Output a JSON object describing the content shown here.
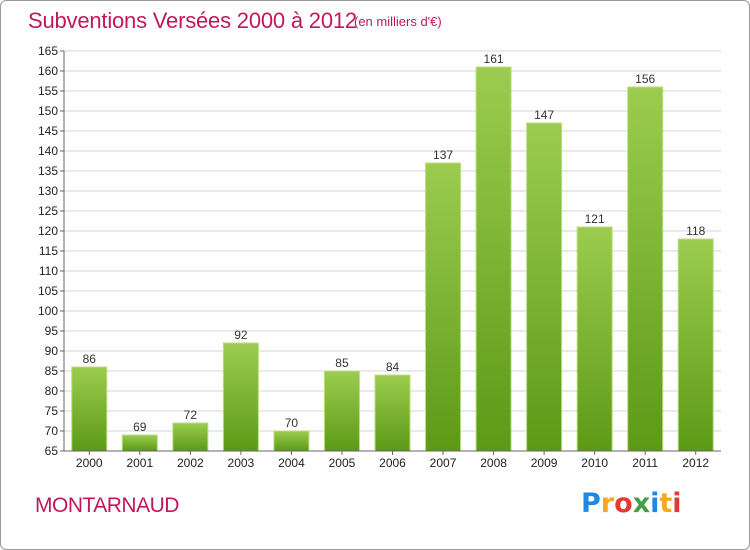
{
  "title": "Subventions Versées 2000 à 2012",
  "subtitle": "(en milliers d'€)",
  "commune": "MONTARNAUD",
  "logo": {
    "letters": [
      "P",
      "r",
      "o",
      "x",
      "i",
      "t",
      "i"
    ],
    "colors": [
      "#1e88e5",
      "#f9a825",
      "#e53935",
      "#43a047",
      "#1e88e5",
      "#f9a825",
      "#e53935"
    ]
  },
  "colors": {
    "accent": "#c2185b",
    "bar_top": "#9ccc4f",
    "bar_bottom": "#5c9a16",
    "grid": "#d4d4d4",
    "axis": "#666666"
  },
  "chart_data": {
    "type": "bar",
    "categories": [
      "2000",
      "2001",
      "2002",
      "2003",
      "2004",
      "2005",
      "2006",
      "2007",
      "2008",
      "2009",
      "2010",
      "2011",
      "2012"
    ],
    "values": [
      86,
      69,
      72,
      92,
      70,
      85,
      84,
      137,
      161,
      147,
      121,
      156,
      118
    ],
    "ylim": [
      65,
      165
    ],
    "yticks": [
      65,
      70,
      75,
      80,
      85,
      90,
      95,
      100,
      105,
      110,
      115,
      120,
      125,
      130,
      135,
      140,
      145,
      150,
      155,
      160,
      165
    ],
    "grid": true,
    "data_labels": true
  }
}
